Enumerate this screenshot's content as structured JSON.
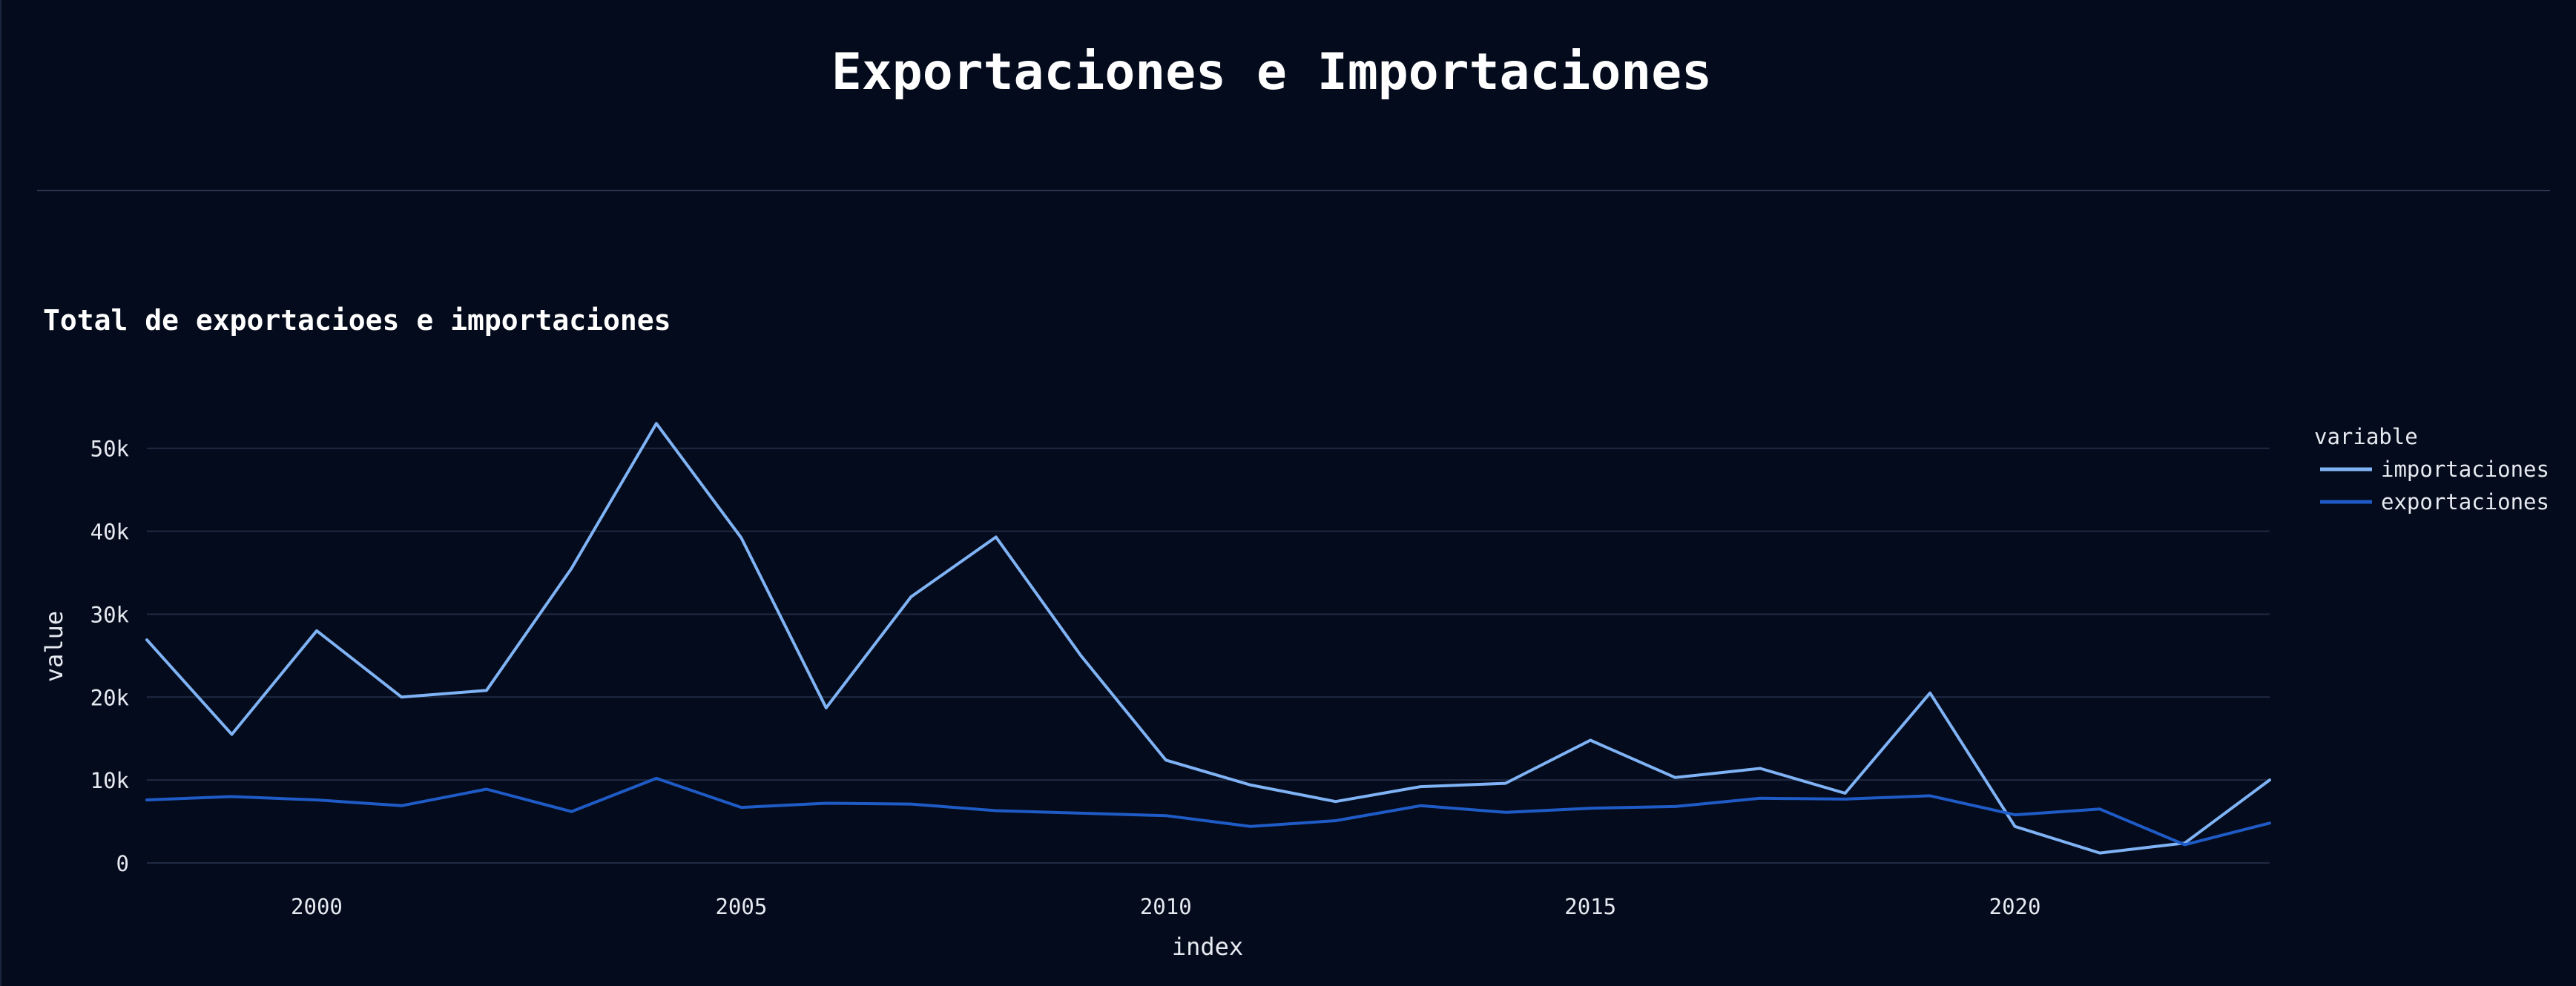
{
  "page": {
    "title": "Exportaciones e Importaciones"
  },
  "chart_data": {
    "type": "line",
    "title": "Total de exportacioes e importaciones",
    "xlabel": "index",
    "ylabel": "value",
    "xlim": [
      1998,
      2023
    ],
    "ylim": [
      0,
      54000
    ],
    "x_ticks": [
      2000,
      2005,
      2010,
      2015,
      2020
    ],
    "y_ticks": [
      0,
      10000,
      20000,
      30000,
      40000,
      50000
    ],
    "y_tick_labels": [
      "0",
      "10k",
      "20k",
      "30k",
      "40k",
      "50k"
    ],
    "grid": true,
    "legend": {
      "title": "variable",
      "position": "right"
    },
    "x": [
      1998,
      1999,
      2000,
      2001,
      2002,
      2003,
      2004,
      2005,
      2006,
      2007,
      2008,
      2009,
      2010,
      2011,
      2012,
      2013,
      2014,
      2015,
      2016,
      2017,
      2018,
      2019,
      2020,
      2021,
      2022,
      2023
    ],
    "series": [
      {
        "name": "importaciones",
        "color": "#7fb3f5",
        "values": [
          26900,
          15500,
          28000,
          20000,
          20800,
          35500,
          53000,
          39200,
          18700,
          32100,
          39300,
          25000,
          12400,
          9400,
          7400,
          9200,
          9600,
          14800,
          10300,
          11400,
          8400,
          20500,
          4400,
          1200,
          2400,
          10000
        ]
      },
      {
        "name": "exportaciones",
        "color": "#1f5bc6",
        "values": [
          7600,
          8000,
          7600,
          6900,
          8900,
          6200,
          10200,
          6700,
          7200,
          7100,
          6300,
          6000,
          5700,
          4400,
          5100,
          6900,
          6100,
          6600,
          6800,
          7800,
          7700,
          8100,
          5800,
          6500,
          2200,
          4800
        ]
      }
    ]
  }
}
